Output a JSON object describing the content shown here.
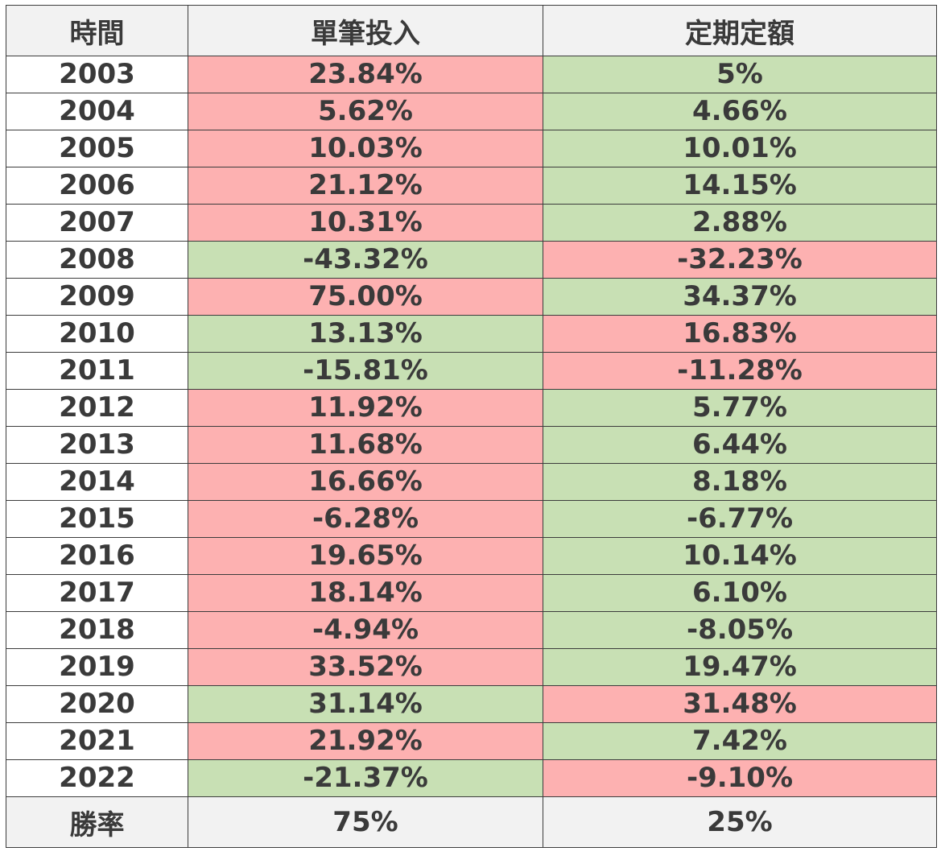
{
  "colors": {
    "red": "#fdb1b1",
    "green": "#c8e0b4",
    "header_bg": "#f2f2f2"
  },
  "headers": {
    "year": "時間",
    "lump": "單筆投入",
    "dca": "定期定額"
  },
  "rows": [
    {
      "year": "2003",
      "lump": "23.84%",
      "lump_color": "red",
      "dca": "5%",
      "dca_color": "green"
    },
    {
      "year": "2004",
      "lump": "5.62%",
      "lump_color": "red",
      "dca": "4.66%",
      "dca_color": "green"
    },
    {
      "year": "2005",
      "lump": "10.03%",
      "lump_color": "red",
      "dca": "10.01%",
      "dca_color": "green"
    },
    {
      "year": "2006",
      "lump": "21.12%",
      "lump_color": "red",
      "dca": "14.15%",
      "dca_color": "green"
    },
    {
      "year": "2007",
      "lump": "10.31%",
      "lump_color": "red",
      "dca": "2.88%",
      "dca_color": "green"
    },
    {
      "year": "2008",
      "lump": "-43.32%",
      "lump_color": "green",
      "dca": "-32.23%",
      "dca_color": "red"
    },
    {
      "year": "2009",
      "lump": "75.00%",
      "lump_color": "red",
      "dca": "34.37%",
      "dca_color": "green"
    },
    {
      "year": "2010",
      "lump": "13.13%",
      "lump_color": "green",
      "dca": "16.83%",
      "dca_color": "red"
    },
    {
      "year": "2011",
      "lump": "-15.81%",
      "lump_color": "green",
      "dca": "-11.28%",
      "dca_color": "red"
    },
    {
      "year": "2012",
      "lump": "11.92%",
      "lump_color": "red",
      "dca": "5.77%",
      "dca_color": "green"
    },
    {
      "year": "2013",
      "lump": "11.68%",
      "lump_color": "red",
      "dca": "6.44%",
      "dca_color": "green"
    },
    {
      "year": "2014",
      "lump": "16.66%",
      "lump_color": "red",
      "dca": "8.18%",
      "dca_color": "green"
    },
    {
      "year": "2015",
      "lump": "-6.28%",
      "lump_color": "red",
      "dca": "-6.77%",
      "dca_color": "green"
    },
    {
      "year": "2016",
      "lump": "19.65%",
      "lump_color": "red",
      "dca": "10.14%",
      "dca_color": "green"
    },
    {
      "year": "2017",
      "lump": "18.14%",
      "lump_color": "red",
      "dca": "6.10%",
      "dca_color": "green"
    },
    {
      "year": "2018",
      "lump": "-4.94%",
      "lump_color": "red",
      "dca": "-8.05%",
      "dca_color": "green"
    },
    {
      "year": "2019",
      "lump": "33.52%",
      "lump_color": "red",
      "dca": "19.47%",
      "dca_color": "green"
    },
    {
      "year": "2020",
      "lump": "31.14%",
      "lump_color": "green",
      "dca": "31.48%",
      "dca_color": "red"
    },
    {
      "year": "2021",
      "lump": "21.92%",
      "lump_color": "red",
      "dca": "7.42%",
      "dca_color": "green"
    },
    {
      "year": "2022",
      "lump": "-21.37%",
      "lump_color": "green",
      "dca": "-9.10%",
      "dca_color": "red"
    }
  ],
  "footer": {
    "label": "勝率",
    "lump": "75%",
    "dca": "25%"
  }
}
